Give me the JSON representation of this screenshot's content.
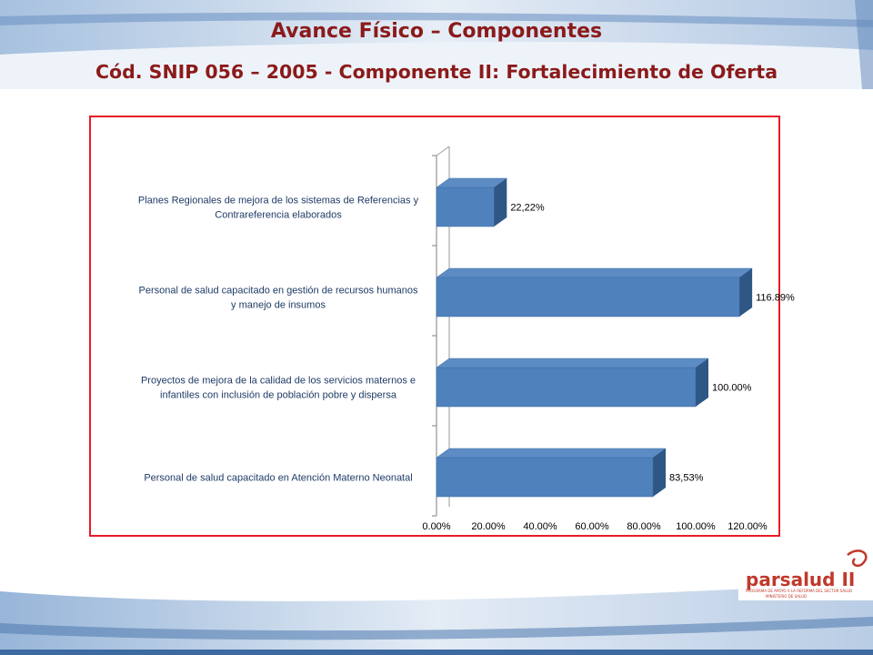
{
  "header": {
    "title": "Avance Físico – Componentes",
    "subtitle": "Cód. SNIP 056 – 2005 - Componente II: Fortalecimiento de Oferta"
  },
  "colors": {
    "title": "#8b1a1a",
    "frame_border": "#e81c24",
    "bar_front": "#4f81bd",
    "bar_top": "#5d8cc4",
    "bar_side": "#2f5785",
    "header_band": "#b9cbe2"
  },
  "chart_data": {
    "type": "bar",
    "orientation": "horizontal",
    "three_d": true,
    "categories": [
      "Planes Regionales de mejora de los sistemas de Referencias y Contrareferencia elaborados",
      "Personal de salud capacitado en gestión de recursos humanos y manejo de insumos",
      "Proyectos de mejora de la calidad de los servicios maternos e infantiles con inclusión de población pobre y dispersa",
      "Personal de salud capacitado en Atención Materno Neonatal"
    ],
    "category_label_lines": [
      [
        "Planes Regionales de mejora de los sistemas de Referencias y",
        "Contrareferencia elaborados"
      ],
      [
        "Personal de salud capacitado en gestión de recursos humanos",
        "y manejo de insumos"
      ],
      [
        "Proyectos de mejora de la calidad de los servicios maternos e",
        "infantiles con inclusión de población pobre y dispersa"
      ],
      [
        "Personal de salud capacitado en Atención Materno Neonatal"
      ]
    ],
    "values": [
      22.22,
      116.89,
      100.0,
      83.53
    ],
    "data_labels": [
      "22,22%",
      "116.89%",
      "100.00%",
      "83,53%"
    ],
    "xlim": [
      0,
      120
    ],
    "x_ticks": [
      "0.00%",
      "20.00%",
      "40.00%",
      "60.00%",
      "80.00%",
      "100.00%",
      "120.00%"
    ],
    "grid": false,
    "legend": "none"
  },
  "logo": {
    "name": "parsalud-logo",
    "text": "parsalud II",
    "tagline": "PROGRAMA DE APOYO A LA REFORMA DEL SECTOR SALUD",
    "ministry": "MINISTERIO DE SALUD"
  }
}
